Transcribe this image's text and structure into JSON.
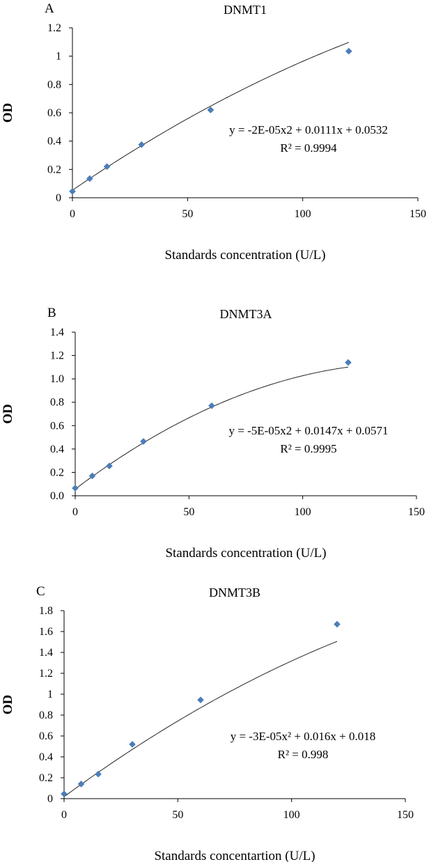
{
  "chart_data": [
    {
      "type": "scatter",
      "panel_label": "A",
      "title": "DNMT1",
      "xlabel": "Standards concentration (U/L)",
      "ylabel": "OD",
      "xlim": [
        0,
        150
      ],
      "ylim": [
        0,
        1.2
      ],
      "x_ticks": [
        "0",
        "50",
        "100",
        "150"
      ],
      "y_ticks": [
        "0",
        "0.2",
        "0.4",
        "0.6",
        "0.8",
        "1",
        "1.2"
      ],
      "x": [
        0,
        7.5,
        15,
        30,
        60,
        120
      ],
      "y": [
        0.045,
        0.135,
        0.22,
        0.375,
        0.62,
        1.035
      ],
      "trendline": {
        "type": "polynomial",
        "a": -2e-05,
        "b": 0.0111,
        "c": 0.0532
      },
      "equation": "y = -2E-05x2 + 0.0111x + 0.0532",
      "r_squared": "R² = 0.9994",
      "marker_color": "#4a7ebb",
      "grid": false
    },
    {
      "type": "scatter",
      "panel_label": "B",
      "title": "DNMT3A",
      "xlabel": "Standards concentration (U/L)",
      "ylabel": "OD",
      "xlim": [
        0,
        150
      ],
      "ylim": [
        0,
        1.4
      ],
      "x_ticks": [
        "0",
        "50",
        "100",
        "150"
      ],
      "y_ticks": [
        "0.0",
        "0.2",
        "0.4",
        "0.6",
        "0.8",
        "1.0",
        "1.2",
        "1.4"
      ],
      "x": [
        0,
        7.5,
        15,
        30,
        60,
        120
      ],
      "y": [
        0.065,
        0.17,
        0.255,
        0.465,
        0.77,
        1.14
      ],
      "trendline": {
        "type": "polynomial",
        "a": -5e-05,
        "b": 0.0147,
        "c": 0.0571
      },
      "equation": "y = -5E-05x2 + 0.0147x + 0.0571",
      "r_squared": "R² = 0.9995",
      "marker_color": "#4a7ebb",
      "grid": false
    },
    {
      "type": "scatter",
      "panel_label": "C",
      "title": "DNMT3B",
      "xlabel": "Standards concentartion (U/L)",
      "ylabel": "OD",
      "xlim": [
        0,
        150
      ],
      "ylim": [
        0,
        1.8
      ],
      "x_ticks": [
        "0",
        "50",
        "100",
        "150"
      ],
      "y_ticks": [
        "0",
        "0.2",
        "0.4",
        "0.6",
        "0.8",
        "1",
        "1.2",
        "1.4",
        "1.6",
        "1.8"
      ],
      "x": [
        0,
        7.5,
        15,
        30,
        60,
        120
      ],
      "y": [
        0.045,
        0.14,
        0.235,
        0.52,
        0.945,
        1.67
      ],
      "trendline": {
        "type": "polynomial",
        "a": -3e-05,
        "b": 0.016,
        "c": 0.018
      },
      "equation": "y = -3E-05x² + 0.016x + 0.018",
      "r_squared": "R² = 0.998",
      "marker_color": "#4a7ebb",
      "grid": false
    }
  ]
}
